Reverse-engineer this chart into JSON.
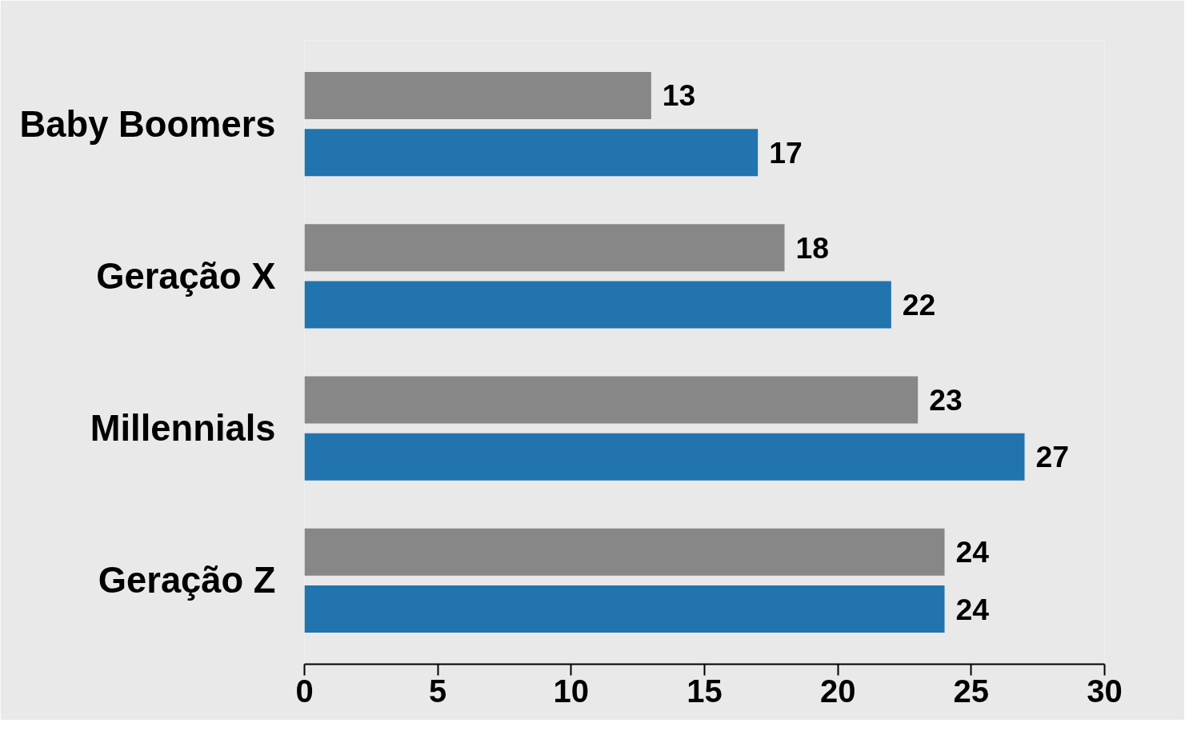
{
  "chart_data": {
    "type": "bar",
    "orientation": "horizontal",
    "categories": [
      "Baby Boomers",
      "Geração X",
      "Millennials",
      "Geração Z"
    ],
    "series": [
      {
        "color": "#878787",
        "values": [
          13,
          18,
          23,
          24
        ]
      },
      {
        "color": "#2174ae",
        "values": [
          17,
          22,
          27,
          24
        ]
      }
    ],
    "xlim": [
      0,
      30
    ],
    "xticks": [
      0,
      5,
      10,
      15,
      20,
      25,
      30
    ],
    "data_labels": true
  }
}
